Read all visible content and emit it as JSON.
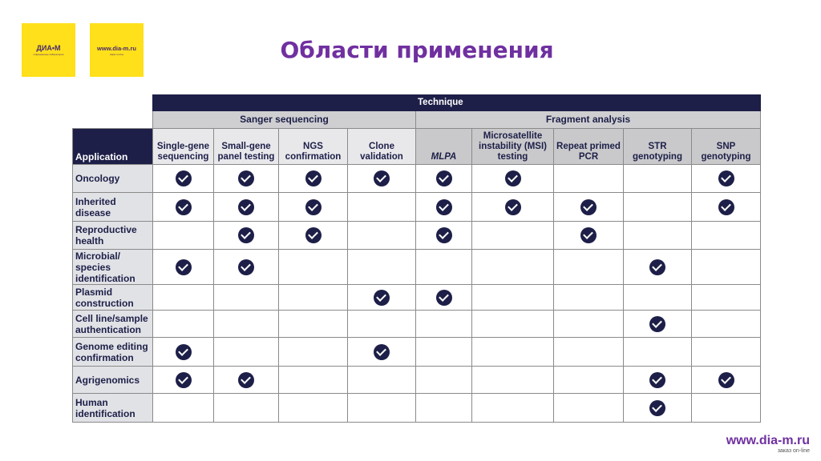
{
  "logos": {
    "left": {
      "name": "ДИА•М",
      "tagline": "современные лаборатории"
    },
    "right": {
      "url": "www.dia-m.ru",
      "tagline": "заказ on-line"
    }
  },
  "title": "Области применения",
  "table": {
    "technique_label": "Technique",
    "application_label": "Application",
    "groups": [
      {
        "label": "Sanger sequencing",
        "span": 4
      },
      {
        "label": "Fragment analysis",
        "span": 5
      }
    ],
    "columns": [
      "Single-gene sequencing",
      "Small-gene panel testing",
      "NGS confirmation",
      "Clone validation",
      "MLPA",
      "Microsatellite instability (MSI) testing",
      "Repeat primed PCR",
      "STR genotyping",
      "SNP genotyping"
    ],
    "check_color": "#1d1f48",
    "rows": [
      {
        "label": "Oncology",
        "checks": [
          1,
          1,
          1,
          1,
          1,
          1,
          0,
          0,
          1
        ]
      },
      {
        "label": "Inherited disease",
        "checks": [
          1,
          1,
          1,
          0,
          1,
          1,
          1,
          0,
          1
        ]
      },
      {
        "label": "Reproductive health",
        "checks": [
          0,
          1,
          1,
          0,
          1,
          0,
          1,
          0,
          0
        ]
      },
      {
        "label": "Microbial/ species identification",
        "checks": [
          1,
          1,
          0,
          0,
          0,
          0,
          0,
          1,
          0
        ]
      },
      {
        "label": "Plasmid construction",
        "checks": [
          0,
          0,
          0,
          1,
          1,
          0,
          0,
          0,
          0
        ]
      },
      {
        "label": "Cell line/sample authentication",
        "checks": [
          0,
          0,
          0,
          0,
          0,
          0,
          0,
          1,
          0
        ]
      },
      {
        "label": "Genome editing confirmation",
        "checks": [
          1,
          0,
          0,
          1,
          0,
          0,
          0,
          0,
          0
        ]
      },
      {
        "label": "Agrigenomics",
        "checks": [
          1,
          1,
          0,
          0,
          0,
          0,
          0,
          1,
          1
        ]
      },
      {
        "label": "Human identification",
        "checks": [
          0,
          0,
          0,
          0,
          0,
          0,
          0,
          1,
          0
        ]
      }
    ]
  },
  "footer": {
    "url": "www.dia-m.ru",
    "tagline": "заказ on-line"
  }
}
